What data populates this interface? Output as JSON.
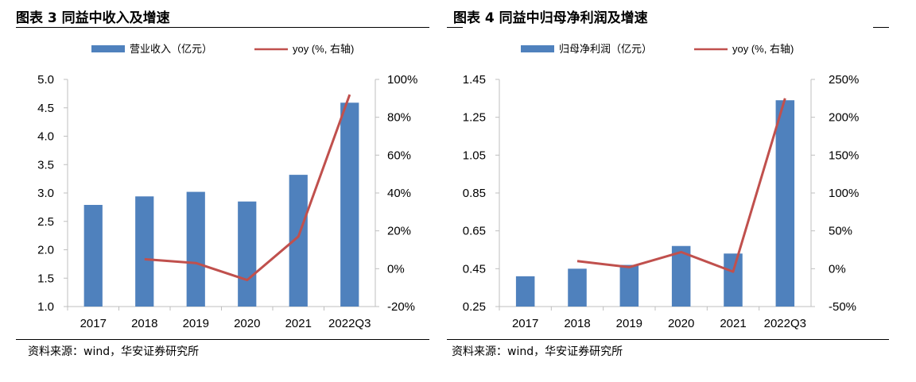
{
  "figures": [
    {
      "title": "图表 3 同益中收入及增速",
      "source": "资料来源：wind，华安证券研究所",
      "legend": {
        "bar_label": "营业收入（亿元）",
        "line_label": "yoy (%, 右轴)"
      },
      "colors": {
        "bar": "#4f81bd",
        "line": "#c0504d"
      }
    },
    {
      "title": "图表 4 同益中归母净利润及增速",
      "source": "资料来源：wind，华安证券研究所",
      "legend": {
        "bar_label": "归母净利润（亿元）",
        "line_label": "yoy (%, 右轴)"
      },
      "colors": {
        "bar": "#4f81bd",
        "line": "#c0504d"
      }
    }
  ],
  "chart_data": [
    {
      "type": "bar",
      "categories": [
        "2017",
        "2018",
        "2019",
        "2020",
        "2021",
        "2022Q3"
      ],
      "series": [
        {
          "name": "营业收入（亿元）",
          "type": "bar",
          "axis": "left",
          "values": [
            2.79,
            2.94,
            3.02,
            2.85,
            3.32,
            4.59
          ]
        },
        {
          "name": "yoy (%, 右轴)",
          "type": "line",
          "axis": "right",
          "values": [
            null,
            5,
            3,
            -6,
            17,
            92
          ]
        }
      ],
      "ylim": [
        1.0,
        5.0
      ],
      "yticks": [
        "1.0",
        "1.5",
        "2.0",
        "2.5",
        "3.0",
        "3.5",
        "4.0",
        "4.5",
        "5.0"
      ],
      "y2lim": [
        -20,
        100
      ],
      "y2ticks": [
        "-20%",
        "0%",
        "20%",
        "40%",
        "60%",
        "80%",
        "100%"
      ],
      "legend_position": "top"
    },
    {
      "type": "bar",
      "categories": [
        "2017",
        "2018",
        "2019",
        "2020",
        "2021",
        "2022Q3"
      ],
      "series": [
        {
          "name": "归母净利润（亿元）",
          "type": "bar",
          "axis": "left",
          "values": [
            0.41,
            0.45,
            0.47,
            0.57,
            0.53,
            1.34
          ]
        },
        {
          "name": "yoy (%, 右轴)",
          "type": "line",
          "axis": "right",
          "values": [
            null,
            10,
            2,
            22,
            -4,
            225
          ]
        }
      ],
      "ylim": [
        0.25,
        1.45
      ],
      "yticks": [
        "0.25",
        "0.45",
        "0.65",
        "0.85",
        "1.05",
        "1.25",
        "1.45"
      ],
      "y2lim": [
        -50,
        250
      ],
      "y2ticks": [
        "-50%",
        "0%",
        "50%",
        "100%",
        "150%",
        "200%",
        "250%"
      ],
      "legend_position": "top"
    }
  ]
}
